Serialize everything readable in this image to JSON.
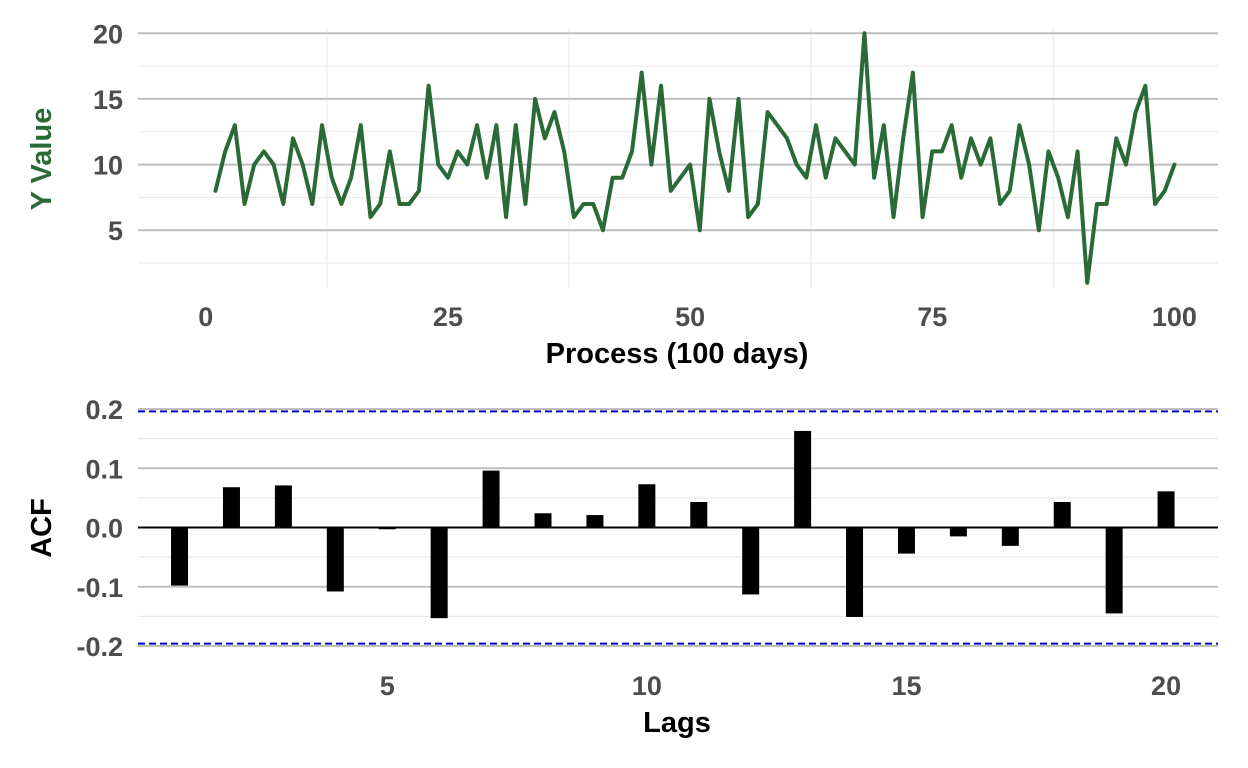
{
  "colors": {
    "line": "#2a6a36",
    "ylabel_top": "#2a6a36",
    "bars": "#000000",
    "confidence": "#0000cc",
    "tick_text": "#4d4d4d",
    "axis_title": "#000000"
  },
  "chart_data": [
    {
      "type": "line",
      "title": "",
      "xlabel": "Process (100 days)",
      "ylabel": "Y Value",
      "xlim": [
        -7,
        104.5
      ],
      "ylim": [
        0.6,
        20.4
      ],
      "xticks": [
        0,
        25,
        50,
        75,
        100
      ],
      "yticks": [
        5,
        10,
        15,
        20
      ],
      "grid": true,
      "series": [
        {
          "x": [
            1,
            2,
            3,
            4,
            5,
            6,
            7,
            8,
            9,
            10,
            11,
            12,
            13,
            14,
            15,
            16,
            17,
            18,
            19,
            20,
            21,
            22,
            23,
            24,
            25,
            26,
            27,
            28,
            29,
            30,
            31,
            32,
            33,
            34,
            35,
            36,
            37,
            38,
            39,
            40,
            41,
            42,
            43,
            44,
            45,
            46,
            47,
            48,
            49,
            50,
            51,
            52,
            53,
            54,
            55,
            56,
            57,
            58,
            59,
            60,
            61,
            62,
            63,
            64,
            65,
            66,
            67,
            68,
            69,
            70,
            71,
            72,
            73,
            74,
            75,
            76,
            77,
            78,
            79,
            80,
            81,
            82,
            83,
            84,
            85,
            86,
            87,
            88,
            89,
            90,
            91,
            92,
            93,
            94,
            95,
            96,
            97,
            98,
            99,
            100
          ],
          "values": [
            8,
            11,
            13,
            7,
            10,
            11,
            10,
            7,
            12,
            10,
            7,
            13,
            9,
            7,
            9,
            13,
            6,
            7,
            11,
            7,
            7,
            8,
            16,
            10,
            9,
            11,
            10,
            13,
            9,
            13,
            6,
            13,
            7,
            15,
            12,
            14,
            11,
            6,
            7,
            7,
            5,
            9,
            9,
            11,
            17,
            10,
            16,
            8,
            9,
            10,
            5,
            15,
            11,
            8,
            15,
            6,
            7,
            14,
            13,
            12,
            10,
            9,
            13,
            9,
            12,
            11,
            10,
            20,
            9,
            13,
            6,
            12,
            17,
            6,
            11,
            11,
            13,
            9,
            12,
            10,
            12,
            7,
            8,
            13,
            10,
            5,
            11,
            9,
            6,
            11,
            1,
            7,
            7,
            12,
            10,
            14,
            16,
            7,
            8,
            10
          ]
        }
      ]
    },
    {
      "type": "bar",
      "title": "",
      "xlabel": "Lags",
      "ylabel": "ACF",
      "xlim": [
        0.2,
        21.0
      ],
      "ylim": [
        -0.2,
        0.2
      ],
      "xticks": [
        5,
        10,
        15,
        20
      ],
      "yticks": [
        0.2,
        0.1,
        0.0,
        -0.1,
        -0.2
      ],
      "ytick_labels": [
        "0.2",
        "0.1",
        "0.0",
        "-0.1",
        "-0.2"
      ],
      "confidence_bounds": [
        0.196,
        -0.196
      ],
      "grid": true,
      "categories": [
        1,
        2,
        3,
        4,
        5,
        6,
        7,
        8,
        9,
        10,
        11,
        12,
        13,
        14,
        15,
        16,
        17,
        18,
        19,
        20
      ],
      "values": [
        -0.098,
        0.068,
        0.071,
        -0.108,
        -0.003,
        -0.153,
        0.096,
        0.024,
        0.021,
        0.073,
        0.043,
        -0.113,
        0.163,
        -0.151,
        -0.044,
        -0.015,
        -0.031,
        0.043,
        -0.145,
        0.061
      ]
    }
  ]
}
